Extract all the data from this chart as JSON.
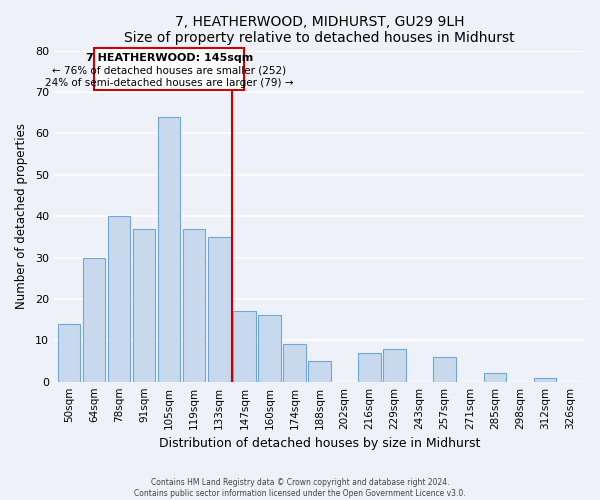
{
  "title": "7, HEATHERWOOD, MIDHURST, GU29 9LH",
  "subtitle": "Size of property relative to detached houses in Midhurst",
  "xlabel": "Distribution of detached houses by size in Midhurst",
  "ylabel": "Number of detached properties",
  "bar_labels": [
    "50sqm",
    "64sqm",
    "78sqm",
    "91sqm",
    "105sqm",
    "119sqm",
    "133sqm",
    "147sqm",
    "160sqm",
    "174sqm",
    "188sqm",
    "202sqm",
    "216sqm",
    "229sqm",
    "243sqm",
    "257sqm",
    "271sqm",
    "285sqm",
    "298sqm",
    "312sqm",
    "326sqm"
  ],
  "bar_heights": [
    14,
    30,
    40,
    37,
    64,
    37,
    35,
    17,
    16,
    9,
    5,
    0,
    7,
    8,
    0,
    6,
    0,
    2,
    0,
    1,
    0
  ],
  "bar_color": "#c9d9ed",
  "bar_edge_color": "#6fa8d6",
  "vline_index": 7,
  "vline_color": "#cc0000",
  "annotation_title": "7 HEATHERWOOD: 145sqm",
  "annotation_line1": "← 76% of detached houses are smaller (252)",
  "annotation_line2": "24% of semi-detached houses are larger (79) →",
  "annotation_box_color": "#ffffff",
  "annotation_box_edge": "#cc0000",
  "footer1": "Contains HM Land Registry data © Crown copyright and database right 2024.",
  "footer2": "Contains public sector information licensed under the Open Government Licence v3.0.",
  "ylim": [
    0,
    80
  ],
  "bg_color": "#eef2f8",
  "grid_color": "#ffffff"
}
